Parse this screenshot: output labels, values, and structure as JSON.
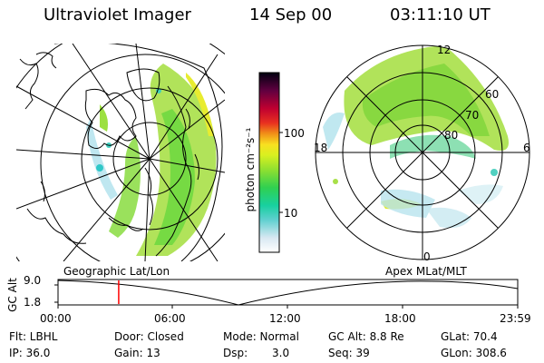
{
  "header": {
    "instrument": "Ultraviolet Imager",
    "date": "14 Sep 00",
    "time": "03:11:10 UT"
  },
  "colorbar": {
    "unit_label": "photon cm⁻²s⁻¹",
    "ticks": [
      "100",
      "10"
    ],
    "colors": [
      "#ffffff",
      "#e6f0f8",
      "#b8e0e6",
      "#40c8c8",
      "#10d0a0",
      "#30d050",
      "#80e030",
      "#c0f020",
      "#e8f020",
      "#f8e020",
      "#f0b020",
      "#f07010",
      "#e02020",
      "#c00030",
      "#800040",
      "#300030",
      "#000010"
    ]
  },
  "left_panel": {
    "label": "Geographic Lat/Lon"
  },
  "right_panel": {
    "label": "Apex MLat/MLT",
    "mlt_labels": [
      "12",
      "18",
      "6",
      "0"
    ],
    "lat_labels": [
      "60",
      "70",
      "80"
    ]
  },
  "timeline": {
    "y_label": "GC Alt",
    "y_ticks": [
      "9.0",
      "1.8"
    ],
    "x_ticks": [
      "00:00",
      "06:00",
      "12:00",
      "18:00",
      "23:59"
    ],
    "current_time_fraction": 0.132,
    "marker_color": "#ff0000"
  },
  "status": {
    "flt": "Flt: LBHL",
    "ip": "IP: 36.0",
    "door": "Door: Closed",
    "gain": "Gain: 13",
    "mode": "Mode: Normal",
    "dsp_label": "Dsp:",
    "dsp_value": "3.0",
    "gc_alt": "GC Alt: 8.8 Re",
    "seq": "Seq: 39",
    "glat": "GLat: 70.4",
    "glon": "GLon: 308.6"
  }
}
